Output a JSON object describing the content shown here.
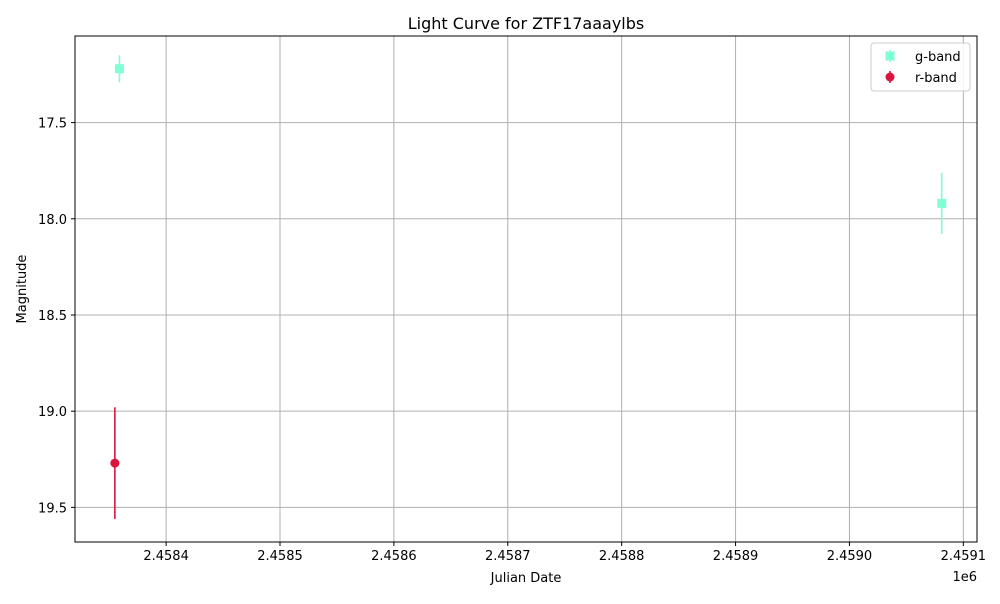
{
  "chart_data": {
    "type": "scatter",
    "title": "Light Curve for ZTF17aaaylbs",
    "xlabel": "Julian Date",
    "ylabel": "Magnitude",
    "x_offset_label": "1e6",
    "xlim": [
      2458320,
      2459112
    ],
    "ylim": [
      19.68,
      17.05
    ],
    "y_inverted": true,
    "grid": true,
    "legend_position": "top-right",
    "x_ticks": [
      2458400,
      2458500,
      2458600,
      2458700,
      2458800,
      2458900,
      2459000,
      2459100
    ],
    "x_tick_labels": [
      "2.4584",
      "2.4585",
      "2.4586",
      "2.4587",
      "2.4588",
      "2.4589",
      "2.4590",
      "2.4591"
    ],
    "y_ticks": [
      17.5,
      18.0,
      18.5,
      19.0,
      19.5
    ],
    "y_tick_labels": [
      "17.5",
      "18.0",
      "18.5",
      "19.0",
      "19.5"
    ],
    "series": [
      {
        "name": "g-band",
        "color": "#7fffd4",
        "marker": "square",
        "points": [
          {
            "x": 2458359,
            "y": 17.22,
            "err": 0.07
          },
          {
            "x": 2459081,
            "y": 17.92,
            "err": 0.16
          }
        ]
      },
      {
        "name": "r-band",
        "color": "#dc143c",
        "marker": "circle",
        "points": [
          {
            "x": 2458355,
            "y": 19.27,
            "err": 0.29
          }
        ]
      }
    ]
  }
}
